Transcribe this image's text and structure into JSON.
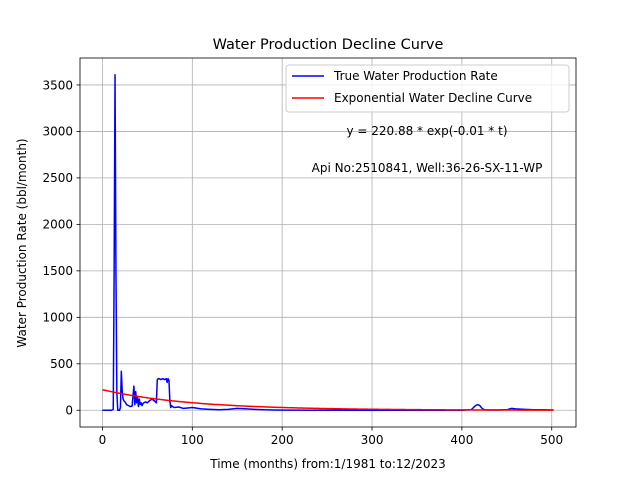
{
  "chart_data": {
    "type": "line",
    "title": "Water Production Decline Curve",
    "xlabel": "Time (months) from:1/1981 to:12/2023",
    "ylabel": "Water Production Rate (bbl/month)",
    "xlim": [
      -25,
      527
    ],
    "ylim": [
      -180,
      3790
    ],
    "x_ticks": [
      0,
      100,
      200,
      300,
      400,
      500
    ],
    "y_ticks": [
      0,
      500,
      1000,
      1500,
      2000,
      2500,
      3000,
      3500
    ],
    "grid": true,
    "legend_position": "top-right",
    "annotations": [
      "y = 220.88 * exp(-0.01 * t)",
      "Api No:2510841, Well:36-26-SX-11-WP"
    ],
    "series": [
      {
        "name": "True Water Production Rate",
        "color": "#0000ff",
        "x": [
          0,
          5,
          10,
          12,
          13,
          14,
          15,
          16,
          17,
          18,
          19,
          20,
          21,
          22,
          23,
          24,
          25,
          27,
          29,
          31,
          33,
          35,
          36,
          37,
          38,
          39,
          40,
          41,
          42,
          43,
          44,
          45,
          46,
          48,
          50,
          52,
          55,
          58,
          60,
          61,
          62,
          63,
          65,
          67,
          69,
          71,
          72,
          73,
          74,
          75,
          76,
          77,
          78,
          80,
          85,
          90,
          95,
          100,
          110,
          120,
          130,
          140,
          150,
          160,
          170,
          180,
          190,
          200,
          250,
          300,
          350,
          400,
          410,
          412,
          414,
          416,
          418,
          420,
          422,
          424,
          426,
          430,
          440,
          450,
          455,
          460,
          470,
          480,
          490,
          500,
          502
        ],
        "values": [
          0,
          0,
          0,
          10,
          1500,
          3610,
          1500,
          200,
          0,
          0,
          0,
          30,
          420,
          200,
          120,
          100,
          90,
          60,
          50,
          40,
          45,
          260,
          60,
          200,
          80,
          150,
          40,
          120,
          60,
          80,
          50,
          70,
          80,
          90,
          80,
          100,
          120,
          100,
          80,
          330,
          340,
          340,
          330,
          340,
          330,
          340,
          300,
          340,
          320,
          100,
          30,
          50,
          40,
          30,
          35,
          20,
          25,
          30,
          15,
          10,
          5,
          10,
          20,
          15,
          10,
          5,
          3,
          2,
          0,
          0,
          0,
          0,
          5,
          20,
          40,
          55,
          60,
          50,
          25,
          10,
          5,
          3,
          3,
          5,
          20,
          15,
          10,
          5,
          5,
          3,
          5
        ]
      },
      {
        "name": "Exponential Water Decline Curve",
        "color": "#ff0000",
        "function": {
          "a": 220.88,
          "b": -0.01
        },
        "x": [
          0,
          25,
          50,
          75,
          100,
          125,
          150,
          175,
          200,
          250,
          300,
          350,
          400,
          450,
          502
        ],
        "values": [
          220.88,
          172.0,
          134.0,
          104.3,
          81.3,
          63.3,
          49.3,
          38.4,
          29.9,
          18.1,
          11.0,
          6.7,
          4.0,
          2.5,
          1.5
        ]
      }
    ]
  }
}
